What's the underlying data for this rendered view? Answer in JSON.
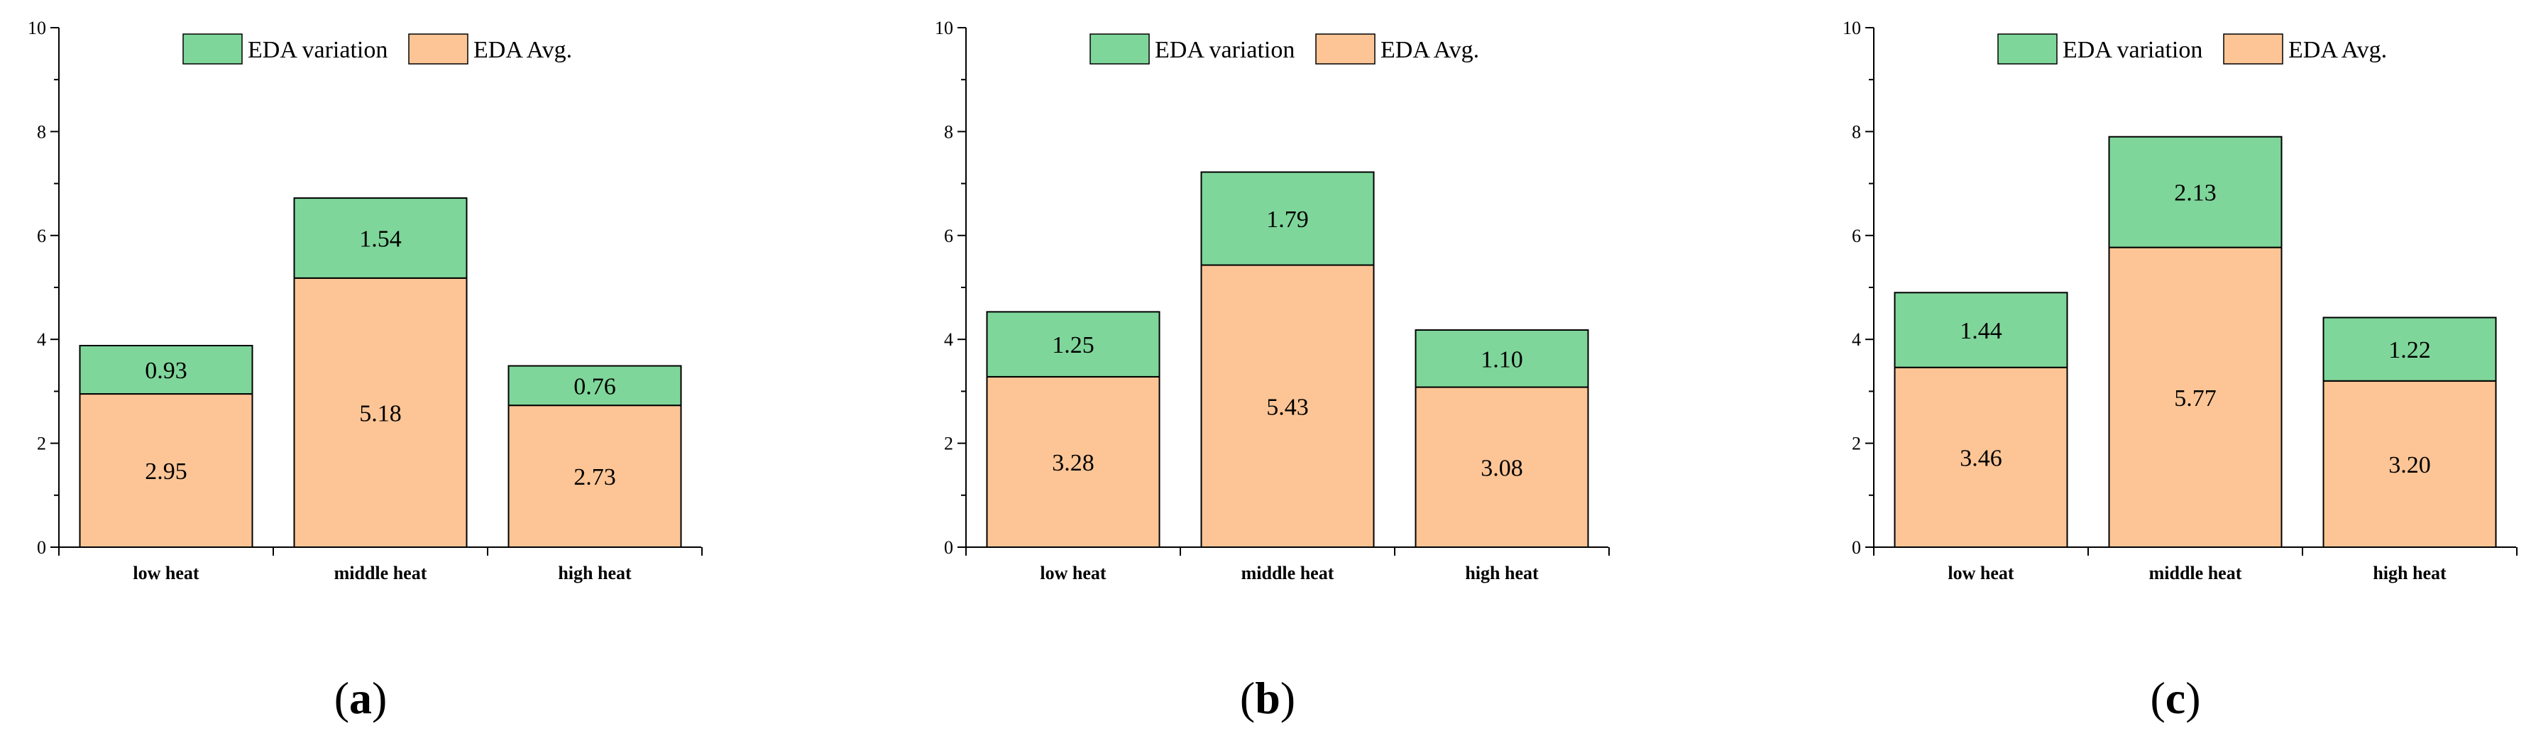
{
  "colors": {
    "variation": "#7fd69a",
    "average": "#fdc596",
    "axis": "#000000"
  },
  "chart_data": [
    {
      "type": "bar",
      "stacked": true,
      "panel_label": "a",
      "categories": [
        "low heat",
        "middle heat",
        "high heat"
      ],
      "series": [
        {
          "name": "EDA Avg.",
          "values": [
            2.95,
            5.18,
            2.73
          ],
          "labels": [
            "2.95",
            "5.18",
            "2.73"
          ]
        },
        {
          "name": "EDA variation",
          "values": [
            0.93,
            1.54,
            0.76
          ],
          "labels": [
            "0.93",
            "1.54",
            "0.76"
          ]
        }
      ],
      "legend": [
        "EDA variation",
        "EDA Avg."
      ],
      "legend_position": "top-center",
      "ylim": [
        0,
        10
      ],
      "yticks": [
        "0",
        "2",
        "4",
        "6",
        "8",
        "10"
      ],
      "xlabel": "",
      "ylabel": ""
    },
    {
      "type": "bar",
      "stacked": true,
      "panel_label": "b",
      "categories": [
        "low heat",
        "middle heat",
        "high heat"
      ],
      "series": [
        {
          "name": "EDA Avg.",
          "values": [
            3.28,
            5.43,
            3.08
          ],
          "labels": [
            "3.28",
            "5.43",
            "3.08"
          ]
        },
        {
          "name": "EDA variation",
          "values": [
            1.25,
            1.79,
            1.1
          ],
          "labels": [
            "1.25",
            "1.79",
            "1.10"
          ]
        }
      ],
      "legend": [
        "EDA variation",
        "EDA Avg."
      ],
      "legend_position": "top-center",
      "ylim": [
        0,
        10
      ],
      "yticks": [
        "0",
        "2",
        "4",
        "6",
        "8",
        "10"
      ],
      "xlabel": "",
      "ylabel": ""
    },
    {
      "type": "bar",
      "stacked": true,
      "panel_label": "c",
      "categories": [
        "low heat",
        "middle heat",
        "high heat"
      ],
      "series": [
        {
          "name": "EDA Avg.",
          "values": [
            3.46,
            5.77,
            3.2
          ],
          "labels": [
            "3.46",
            "5.77",
            "3.20"
          ]
        },
        {
          "name": "EDA variation",
          "values": [
            1.44,
            2.13,
            1.22
          ],
          "labels": [
            "1.44",
            "2.13",
            "1.22"
          ]
        }
      ],
      "legend": [
        "EDA variation",
        "EDA Avg."
      ],
      "legend_position": "top-center",
      "ylim": [
        0,
        10
      ],
      "yticks": [
        "0",
        "2",
        "4",
        "6",
        "8",
        "10"
      ],
      "xlabel": "",
      "ylabel": ""
    }
  ]
}
